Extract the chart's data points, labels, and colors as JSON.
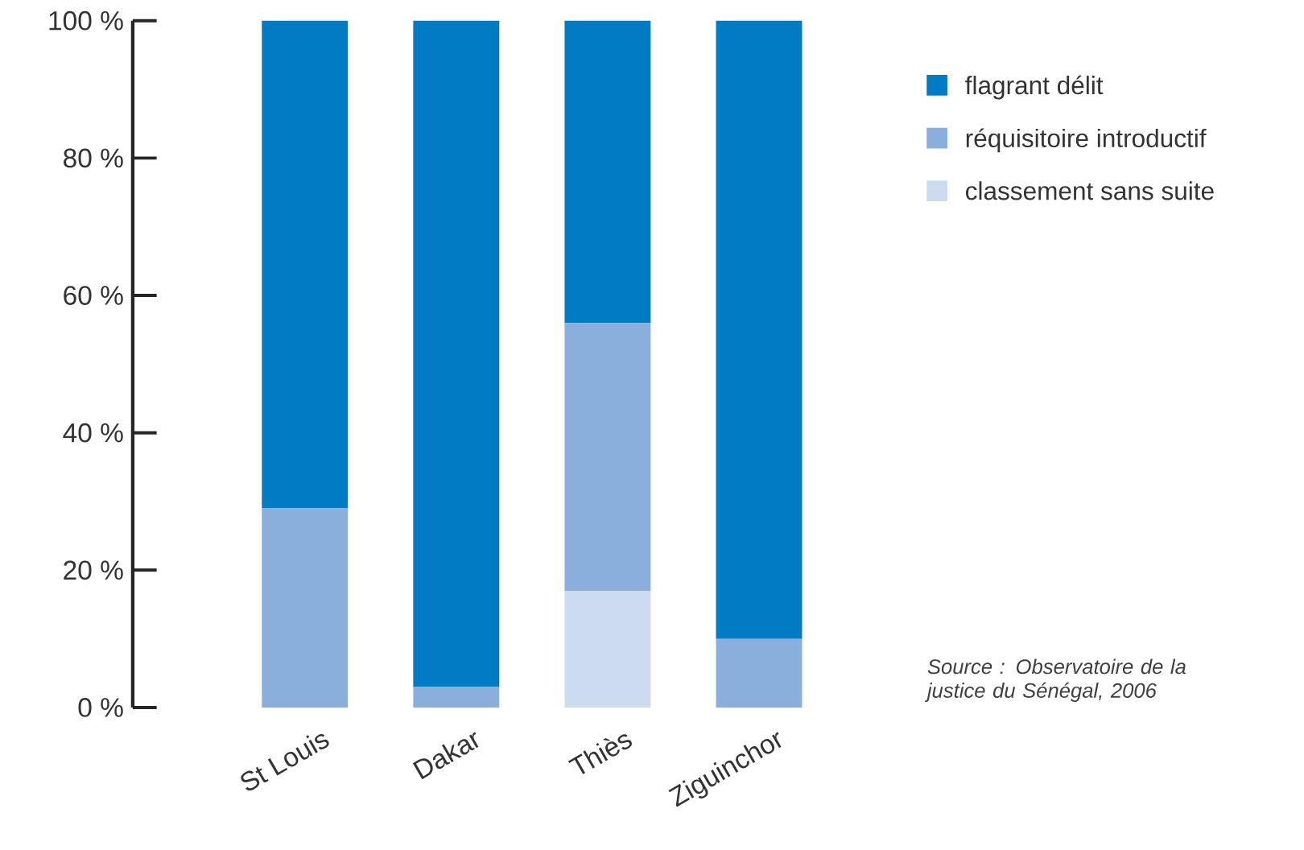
{
  "chart_data": {
    "type": "bar",
    "stacked": true,
    "categories": [
      "St Louis",
      "Dakar",
      "Thiès",
      "Ziguinchor"
    ],
    "series": [
      {
        "name": "classement sans suite",
        "color": "#ccdbef",
        "values": [
          0,
          0,
          17,
          0
        ]
      },
      {
        "name": "réquisitoire introductif",
        "color": "#8aafdd",
        "values": [
          29,
          3,
          39,
          10
        ]
      },
      {
        "name": "flagrant délit",
        "color": "#007bc4",
        "values": [
          71,
          97,
          44,
          90
        ]
      }
    ],
    "ylim": [
      0,
      100
    ],
    "yticks": [
      {
        "value": 0,
        "label": "0 %"
      },
      {
        "value": 20,
        "label": "20 %"
      },
      {
        "value": 40,
        "label": "40 %"
      },
      {
        "value": 60,
        "label": "60 %"
      },
      {
        "value": 80,
        "label": "80 %"
      },
      {
        "value": 100,
        "label": "100 %"
      }
    ],
    "grid": false,
    "legend": "right",
    "annotations": [
      "Source : Observatoire de la justice du Sénégal, 2006"
    ]
  }
}
